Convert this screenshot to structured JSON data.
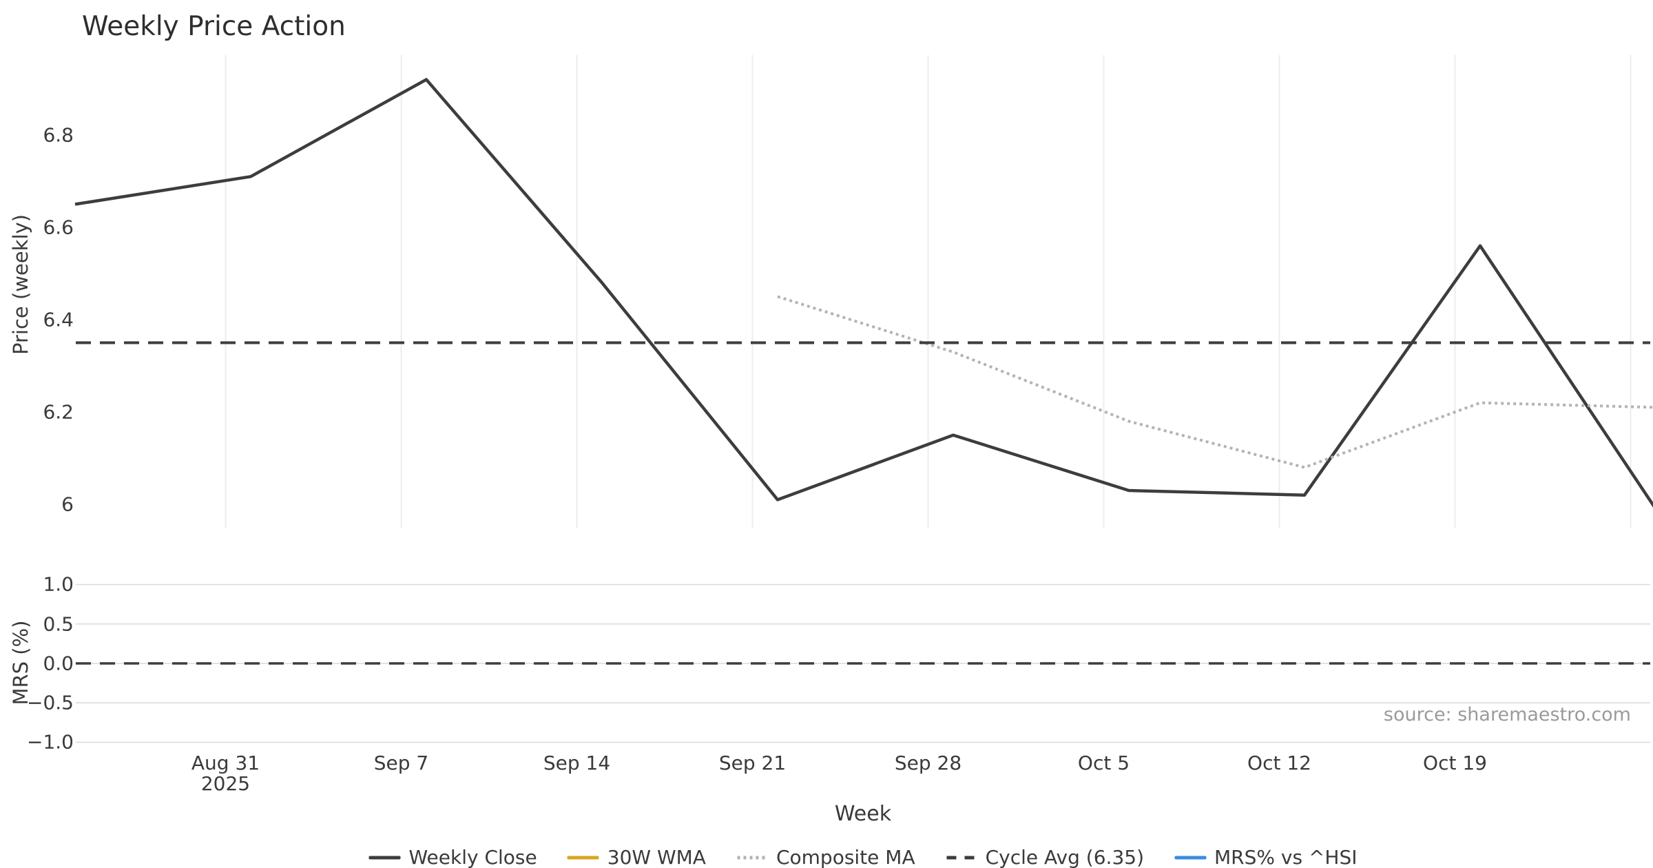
{
  "title": "Weekly Price Action",
  "xlabel": "Week",
  "source_note": "source: sharemaestro.com",
  "colors": {
    "background": "#ffffff",
    "text": "#3a3a3a",
    "muted_text": "#9a9a9a",
    "grid_vertical": "#e9edf5",
    "grid_horizontal": "#d9d9d9",
    "weekly_close": "#3d3d3d",
    "wma_30w": "#d9a521",
    "composite_ma": "#b3b3b3",
    "cycle_avg": "#3d3d3d",
    "mrs_line": "#3a8ce0"
  },
  "chart_data": [
    {
      "type": "line",
      "panel": "price",
      "title": "Weekly Price Action",
      "xlabel": "Week",
      "ylabel": "Price (weekly)",
      "x": [
        "2025-08-25",
        "2025-09-01",
        "2025-09-08",
        "2025-09-15",
        "2025-09-22",
        "2025-09-29",
        "2025-10-06",
        "2025-10-13",
        "2025-10-20",
        "2025-10-27"
      ],
      "x_tick_labels": [
        "Aug 31\n2025",
        "Sep 7",
        "Sep 14",
        "Sep 21",
        "Sep 28",
        "Oct 5",
        "Oct 12",
        "Oct 19"
      ],
      "yticks": [
        {
          "label": "6",
          "value": 6
        },
        {
          "label": "6.2",
          "value": 6.2
        },
        {
          "label": "6.4",
          "value": 6.4
        },
        {
          "label": "6.6",
          "value": 6.6
        },
        {
          "label": "6.8",
          "value": 6.8
        }
      ],
      "ylim": [
        5.948,
        6.973
      ],
      "grid": "vertical",
      "legend_position": "bottom",
      "series": [
        {
          "name": "Weekly Close",
          "style": "solid",
          "color_key": "weekly_close",
          "values": [
            6.65,
            6.71,
            6.92,
            6.48,
            6.01,
            6.15,
            6.03,
            6.02,
            6.56,
            5.99
          ]
        },
        {
          "name": "30W WMA",
          "style": "solid",
          "color_key": "wma_30w",
          "values": [
            null,
            null,
            null,
            null,
            null,
            null,
            null,
            null,
            null,
            null
          ]
        },
        {
          "name": "Composite MA",
          "style": "dotted",
          "color_key": "composite_ma",
          "values": [
            null,
            null,
            null,
            null,
            6.45,
            6.33,
            6.18,
            6.08,
            6.22,
            6.21
          ]
        },
        {
          "name": "Cycle Avg (6.35)",
          "style": "dashed",
          "color_key": "cycle_avg",
          "constant": 6.35
        }
      ]
    },
    {
      "type": "line",
      "panel": "mrs",
      "ylabel": "MRS (%)",
      "yticks": [
        {
          "label": "1.0",
          "value": 1.0
        },
        {
          "label": "0.5",
          "value": 0.5
        },
        {
          "label": "0.0",
          "value": 0.0
        },
        {
          "label": "−0.5",
          "value": -0.5
        },
        {
          "label": "−1.0",
          "value": -1.0
        }
      ],
      "ylim": [
        -1.066,
        1.074
      ],
      "grid": "horizontal",
      "zero_line": 0,
      "series": [
        {
          "name": "MRS% vs ^HSI",
          "style": "solid",
          "color_key": "mrs_line",
          "values": [
            null,
            null,
            null,
            null,
            null,
            null,
            null,
            null,
            null,
            null
          ]
        }
      ]
    }
  ],
  "legend": [
    {
      "label": "Weekly Close",
      "style": "solid",
      "color_key": "weekly_close"
    },
    {
      "label": "30W WMA",
      "style": "solid",
      "color_key": "wma_30w"
    },
    {
      "label": "Composite MA",
      "style": "dotted",
      "color_key": "composite_ma"
    },
    {
      "label": "Cycle Avg (6.35)",
      "style": "dashed",
      "color_key": "cycle_avg"
    },
    {
      "label": "MRS% vs ^HSI",
      "style": "solid",
      "color_key": "mrs_line"
    }
  ]
}
